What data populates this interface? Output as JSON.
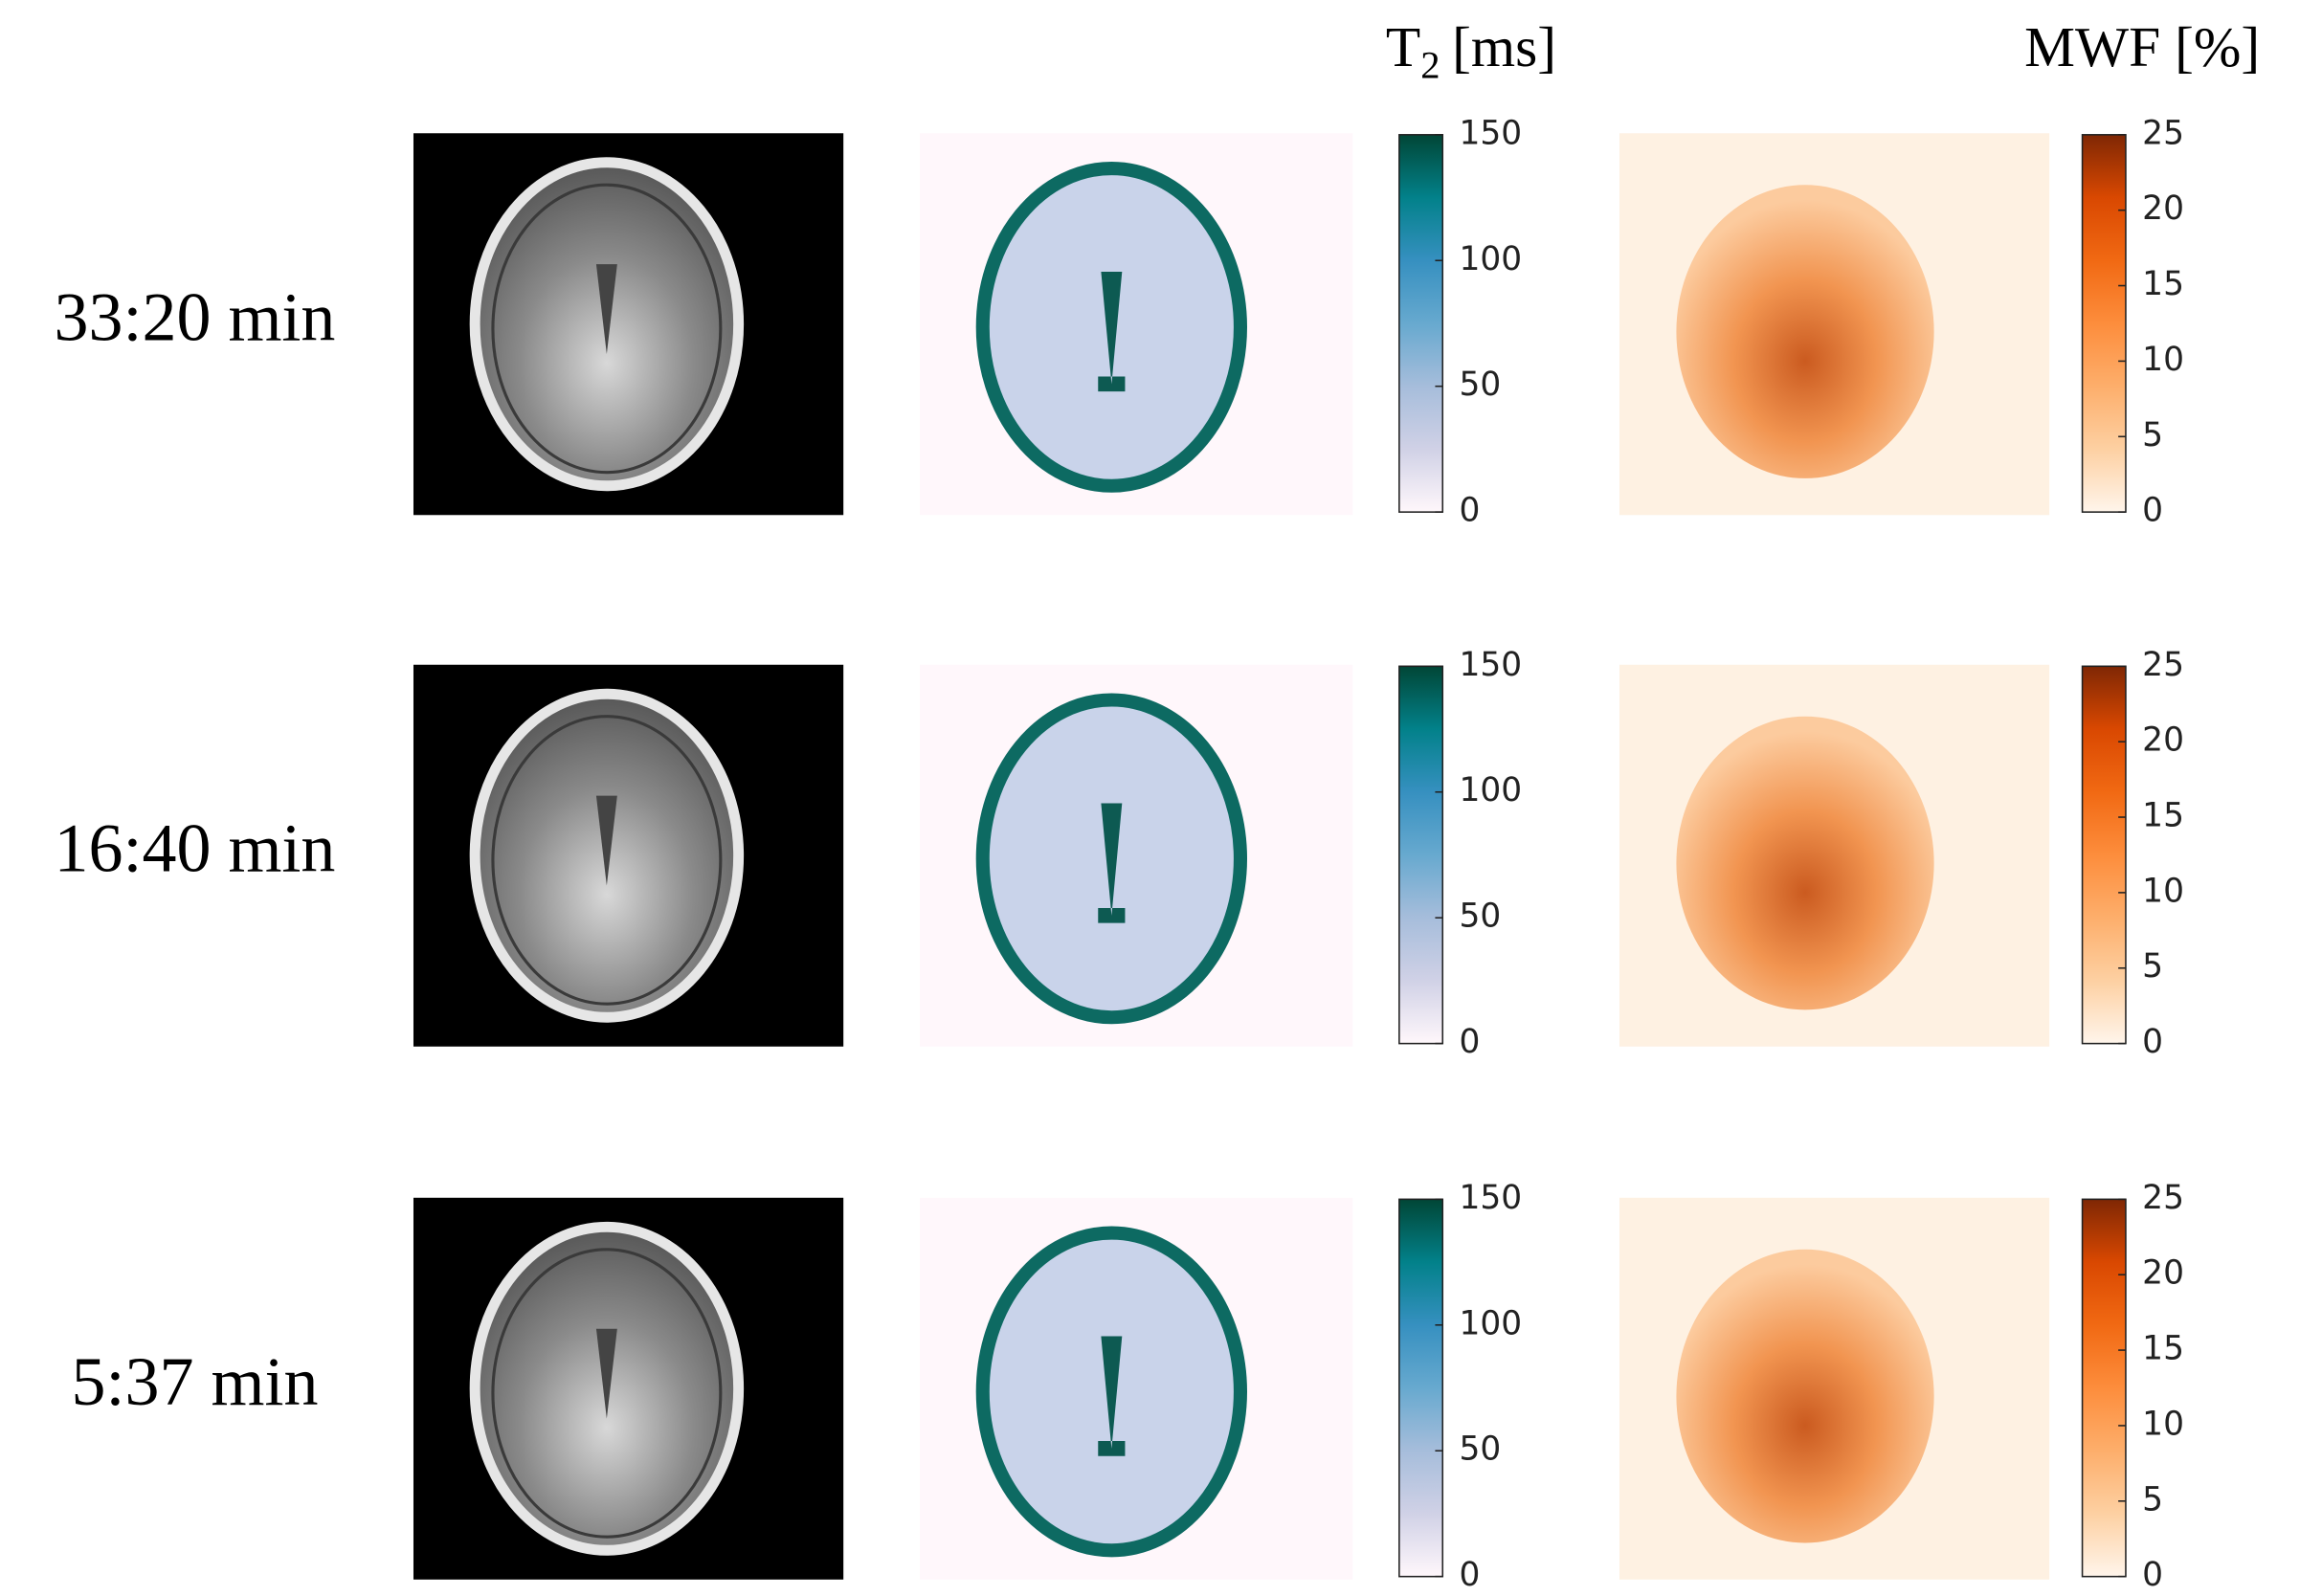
{
  "rows": [
    "33:20 min",
    "16:40 min",
    "5:37 min"
  ],
  "t2_title": {
    "base": "T",
    "subscript": "2",
    "unit": "[ms]"
  },
  "mwf_title": "MWF [%]",
  "colorbars": {
    "t2": {
      "lim": [
        0,
        150
      ],
      "ticks": [
        0,
        50,
        100,
        150
      ],
      "colors": [
        "#fff7fb",
        "#d0d1e6",
        "#a6bddb",
        "#67a9cf",
        "#3690c0",
        "#02818a",
        "#014636"
      ]
    },
    "mwf": {
      "lim": [
        0,
        25
      ],
      "ticks": [
        0,
        5,
        10,
        15,
        20,
        25
      ],
      "colors": [
        "#fff5eb",
        "#fdd0a2",
        "#fdae6b",
        "#fd8d3c",
        "#f16913",
        "#d94801",
        "#7f2704"
      ]
    }
  }
}
